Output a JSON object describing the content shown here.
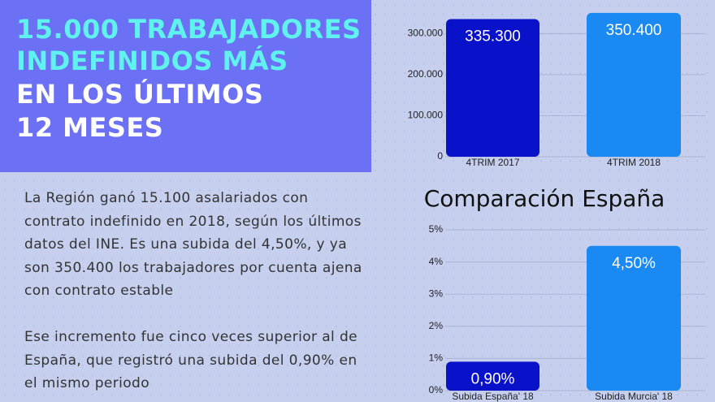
{
  "headline": [
    "15.000 TRABAJADORES",
    "INDEFINIDOS MÁS",
    "EN LOS ÚLTIMOS",
    "12 MESES"
  ],
  "paragraphs": [
    "La Región ganó 15.100 asalariados con contrato indefinido en 2018, según los últimos datos del INE. Es una subida del 4,50%, y ya son 350.400 los trabajadores por cuenta ajena con contrato estable",
    "Ese incremento fue cinco veces superior al de España, que registró una subida del 0,90% en el mismo periodo"
  ],
  "chart_data": [
    {
      "type": "bar",
      "categories": [
        "4TRIM 2017",
        "4TRIM 2018"
      ],
      "values": [
        335300,
        350400
      ],
      "value_labels": [
        "335.300",
        "350.400"
      ],
      "colors": [
        "#0a12c9",
        "#1a8af2"
      ],
      "ylim": [
        0,
        360000
      ],
      "yticks": [
        0,
        {
          "value": 100000,
          "label": "100.000"
        },
        {
          "value": 200000,
          "label": "200.000"
        },
        {
          "value": 300000,
          "label": "300.000"
        }
      ],
      "grid": true
    },
    {
      "type": "bar",
      "title": "Comparación España",
      "categories": [
        "Subida España' 18",
        "Subida Murcia' 18"
      ],
      "values": [
        0.9,
        4.5
      ],
      "value_labels": [
        "0,90%",
        "4,50%"
      ],
      "colors": [
        "#0a12c9",
        "#1a8af2"
      ],
      "ylim": [
        0,
        5
      ],
      "yticks": [
        {
          "value": 0,
          "label": "0%"
        },
        {
          "value": 1,
          "label": "1%"
        },
        {
          "value": 2,
          "label": "2%"
        },
        {
          "value": 3,
          "label": "3%"
        },
        {
          "value": 4,
          "label": "4%"
        },
        {
          "value": 5,
          "label": "5%"
        }
      ],
      "grid": true
    }
  ]
}
